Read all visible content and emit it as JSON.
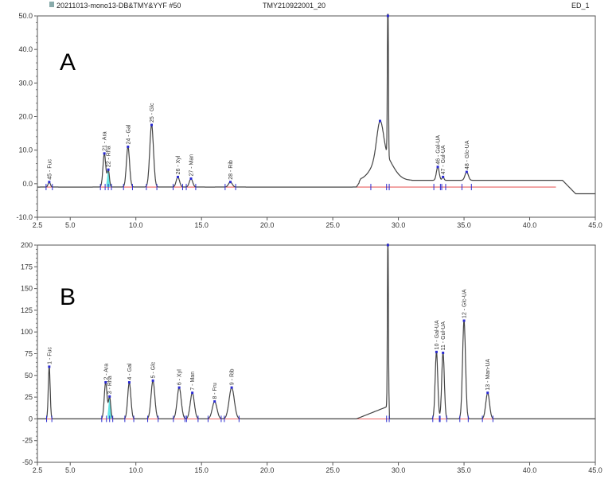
{
  "header": {
    "left": "20211013-mono13-DB&TMY&YYF  #50",
    "center": "TMY210922001_20",
    "right": "ED_1"
  },
  "colors": {
    "trace": "#444444",
    "baseline": "#e03030",
    "marker": "#2a2ad0",
    "fill": "#40e0e0"
  },
  "chart_data": [
    {
      "type": "line",
      "panel_label": "A",
      "xlim": [
        2.5,
        45.0
      ],
      "ylim": [
        -10.0,
        50.0
      ],
      "xticks": [
        "2.5",
        "5.0",
        "10.0",
        "15.0",
        "20.0",
        "25.0",
        "30.0",
        "35.0",
        "40.0",
        "45.0"
      ],
      "yticks": [
        "50.0",
        "40.0",
        "30.0",
        "20.0",
        "10.0",
        "0.0",
        "-10.0"
      ],
      "baseline_level": -1,
      "peaks": [
        {
          "rt": 3.4,
          "height": 1.5,
          "label": "45 - Fuc"
        },
        {
          "rt": 7.6,
          "height": 10,
          "label": "21 - Ara"
        },
        {
          "rt": 7.9,
          "height": 5,
          "label": "22 - Rha",
          "filled": true
        },
        {
          "rt": 9.4,
          "height": 12,
          "label": "24 - Gal"
        },
        {
          "rt": 11.2,
          "height": 18.5,
          "label": "25 - Glc"
        },
        {
          "rt": 13.2,
          "height": 3,
          "label": "26 - Xyl"
        },
        {
          "rt": 14.2,
          "height": 2.5,
          "label": "27 - Man"
        },
        {
          "rt": 17.2,
          "height": 1.5,
          "label": "28 - Rib"
        },
        {
          "rt": 28.6,
          "height": 10,
          "label": ""
        },
        {
          "rt": 29.2,
          "height": 55,
          "label": ""
        },
        {
          "rt": 33.0,
          "height": 4,
          "label": "46 - Gal-UA"
        },
        {
          "rt": 33.4,
          "height": 1,
          "label": "47 - Gul-UA"
        },
        {
          "rt": 35.2,
          "height": 2.5,
          "label": "48 - Glc-UA"
        }
      ]
    },
    {
      "type": "line",
      "panel_label": "B",
      "xlim": [
        2.5,
        45.0
      ],
      "ylim": [
        -50,
        200
      ],
      "xticks": [
        "2.5",
        "5.0",
        "10.0",
        "15.0",
        "20.0",
        "25.0",
        "30.0",
        "35.0",
        "40.0",
        "45.0"
      ],
      "yticks": [
        "200",
        "175",
        "150",
        "125",
        "100",
        "75",
        "50",
        "25",
        "0",
        "-25",
        "-50"
      ],
      "baseline_level": 0,
      "peaks": [
        {
          "rt": 3.4,
          "height": 60,
          "label": "1 - Fuc"
        },
        {
          "rt": 7.7,
          "height": 42,
          "label": "2 - Ara"
        },
        {
          "rt": 8.0,
          "height": 25,
          "label": "3 - Rha",
          "filled": true
        },
        {
          "rt": 9.5,
          "height": 42,
          "label": "4 - Gal"
        },
        {
          "rt": 11.3,
          "height": 44,
          "label": "5 - Glc"
        },
        {
          "rt": 13.3,
          "height": 36,
          "label": "6 - Xyl"
        },
        {
          "rt": 14.3,
          "height": 30,
          "label": "7 - Man"
        },
        {
          "rt": 16.0,
          "height": 20,
          "label": "8 - Fru"
        },
        {
          "rt": 17.3,
          "height": 36,
          "label": "9 - Rib"
        },
        {
          "rt": 29.2,
          "height": 210,
          "label": ""
        },
        {
          "rt": 32.9,
          "height": 77,
          "label": "10 - Gal-UA"
        },
        {
          "rt": 33.4,
          "height": 76,
          "label": "11 - Gul-UA"
        },
        {
          "rt": 35.0,
          "height": 113,
          "label": "12 - Glc-UA"
        },
        {
          "rt": 36.8,
          "height": 30,
          "label": "13 - Man-UA"
        }
      ]
    }
  ]
}
